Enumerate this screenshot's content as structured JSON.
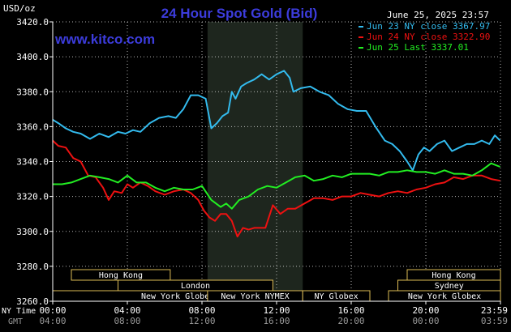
{
  "header": {
    "unit": "USD/oz",
    "title": "24 Hour Spot Gold (Bid)",
    "datetime": "June 25, 2025 23:57",
    "watermark": "www.kitco.com"
  },
  "legend": [
    {
      "label": "Jun 23 NY close 3367.97",
      "color": "#33bbee"
    },
    {
      "label": "Jun 24 NY close 3322.90",
      "color": "#ee1111"
    },
    {
      "label": "Jun 25 Last 3337.01",
      "color": "#22ee22"
    }
  ],
  "axis_labels": {
    "ny_time": "NY Time",
    "gmt": "GMT"
  },
  "sessions": [
    {
      "name": "Hong Kong",
      "start": 1.0,
      "end": 6.3,
      "row": 0
    },
    {
      "name": "London",
      "start": 3.5,
      "end": 11.8,
      "row": 1
    },
    {
      "name": "New York Globex",
      "start": 0.0,
      "end": 13.4,
      "row": 2
    },
    {
      "name": "New York NYMEX",
      "start": 8.3,
      "end": 13.4,
      "row": 2
    },
    {
      "name": "NY Globex",
      "start": 13.4,
      "end": 17.0,
      "row": 2
    },
    {
      "name": "Hong Kong",
      "start": 19.0,
      "end": 24.0,
      "row": 0
    },
    {
      "name": "Sydney",
      "start": 18.5,
      "end": 24.0,
      "row": 1
    },
    {
      "name": "New York Globex",
      "start": 18.0,
      "end": 24.0,
      "row": 2
    }
  ],
  "colors": {
    "background": "#000000",
    "grid": "#ffffff",
    "shade": "#1e261e",
    "title": "#3c3cdc",
    "watermark": "#3c3cdc",
    "session_fill": "#000000",
    "session_border": "#ddbb55",
    "text": "#ffffff",
    "gmt_text": "#999999"
  },
  "chart_data": {
    "type": "line",
    "title": "24 Hour Spot Gold (Bid)",
    "ylabel": "USD/oz",
    "ylim": [
      3260,
      3420
    ],
    "yticks": [
      3260,
      3280,
      3300,
      3320,
      3340,
      3360,
      3380,
      3400,
      3420
    ],
    "ytick_labels": [
      "3260.0",
      "3280.0",
      "3300.0",
      "3320.0",
      "3340.0",
      "3360.0",
      "3380.0",
      "3400.0",
      "3420.0"
    ],
    "xlim": [
      0,
      24
    ],
    "xticks": [
      0,
      4,
      8,
      12,
      16,
      20,
      24
    ],
    "xtick_labels": [
      "00:00",
      "04:00",
      "08:00",
      "12:00",
      "16:00",
      "20:00",
      "23:59"
    ],
    "gmt_labels": [
      "04:00",
      "08:00",
      "12:00",
      "16:00",
      "20:00",
      "00:00",
      "03:59"
    ],
    "shaded_hours": [
      8.3,
      13.4
    ],
    "grid": true,
    "legend_position": "top-right",
    "series": [
      {
        "name": "Jun 23 NY close 3367.97",
        "color": "#33bbee",
        "x": [
          0,
          0.3,
          0.7,
          1.1,
          1.5,
          2.0,
          2.5,
          3.0,
          3.5,
          3.9,
          4.3,
          4.7,
          5.2,
          5.7,
          6.2,
          6.6,
          7.0,
          7.4,
          7.8,
          8.2,
          8.5,
          8.8,
          9.1,
          9.4,
          9.6,
          9.8,
          10.1,
          10.4,
          10.8,
          11.2,
          11.6,
          12.0,
          12.4,
          12.7,
          12.9,
          13.3,
          13.8,
          14.3,
          14.8,
          15.3,
          15.8,
          16.3,
          16.8,
          17.3,
          17.8,
          18.2,
          18.6,
          19.0,
          19.3,
          19.6,
          19.9,
          20.2,
          20.6,
          21.0,
          21.4,
          21.8,
          22.2,
          22.6,
          23.0,
          23.4,
          23.7,
          23.98
        ],
        "y": [
          3364,
          3362,
          3359,
          3357,
          3356,
          3353,
          3356,
          3354,
          3357,
          3356,
          3358,
          3357,
          3362,
          3365,
          3366,
          3365,
          3370,
          3378,
          3378,
          3376,
          3359,
          3362,
          3366,
          3368,
          3380,
          3376,
          3383,
          3385,
          3387,
          3390,
          3387,
          3390,
          3392,
          3388,
          3380,
          3382,
          3383,
          3380,
          3378,
          3373,
          3370,
          3369,
          3369,
          3360,
          3352,
          3350,
          3346,
          3340,
          3335,
          3344,
          3348,
          3346,
          3350,
          3352,
          3346,
          3348,
          3350,
          3350,
          3352,
          3350,
          3355,
          3352
        ]
      },
      {
        "name": "Jun 24 NY close 3322.90",
        "color": "#ee1111",
        "x": [
          0,
          0.3,
          0.7,
          1.1,
          1.5,
          1.9,
          2.3,
          2.7,
          3.0,
          3.3,
          3.7,
          4.0,
          4.3,
          4.7,
          5.1,
          5.5,
          6.0,
          6.5,
          7.0,
          7.4,
          7.8,
          8.1,
          8.4,
          8.7,
          9.0,
          9.3,
          9.6,
          9.9,
          10.2,
          10.5,
          10.8,
          11.2,
          11.4,
          11.8,
          12.2,
          12.6,
          13.0,
          13.5,
          14.0,
          14.5,
          15.0,
          15.5,
          16.0,
          16.5,
          17.0,
          17.5,
          18.0,
          18.5,
          19.0,
          19.5,
          20.0,
          20.5,
          21.0,
          21.5,
          22.0,
          22.5,
          23.0,
          23.5,
          23.98
        ],
        "y": [
          3352,
          3349,
          3348,
          3342,
          3340,
          3332,
          3331,
          3325,
          3318,
          3323,
          3322,
          3327,
          3325,
          3328,
          3326,
          3323,
          3321,
          3323,
          3324,
          3322,
          3318,
          3312,
          3308,
          3306,
          3310,
          3310,
          3306,
          3297,
          3302,
          3301,
          3302,
          3302,
          3302,
          3315,
          3310,
          3313,
          3313,
          3316,
          3319,
          3319,
          3318,
          3320,
          3320,
          3322,
          3321,
          3320,
          3322,
          3323,
          3322,
          3324,
          3325,
          3327,
          3328,
          3331,
          3330,
          3332,
          3332,
          3330,
          3329
        ]
      },
      {
        "name": "Jun 25 Last 3337.01",
        "color": "#22ee22",
        "x": [
          0,
          0.5,
          1.0,
          1.5,
          2.0,
          2.5,
          3.0,
          3.5,
          4.0,
          4.5,
          5.0,
          5.5,
          6.0,
          6.5,
          7.0,
          7.5,
          8.0,
          8.5,
          9.0,
          9.3,
          9.6,
          10.0,
          10.5,
          11.0,
          11.5,
          12.0,
          12.5,
          13.0,
          13.5,
          14.0,
          14.5,
          15.0,
          15.5,
          16.0,
          16.5,
          17.0,
          17.5,
          18.0,
          18.5,
          19.0,
          19.5,
          20.0,
          20.5,
          21.0,
          21.5,
          22.0,
          22.5,
          23.0,
          23.5,
          23.98
        ],
        "y": [
          3327,
          3327,
          3328,
          3330,
          3332,
          3331,
          3330,
          3328,
          3332,
          3328,
          3328,
          3325,
          3323,
          3325,
          3324,
          3324,
          3326,
          3318,
          3314,
          3316,
          3313,
          3318,
          3320,
          3324,
          3326,
          3325,
          3328,
          3331,
          3332,
          3329,
          3330,
          3332,
          3331,
          3333,
          3333,
          3333,
          3332,
          3334,
          3334,
          3335,
          3334,
          3334,
          3333,
          3335,
          3333,
          3333,
          3332,
          3335,
          3339,
          3337
        ]
      }
    ]
  }
}
